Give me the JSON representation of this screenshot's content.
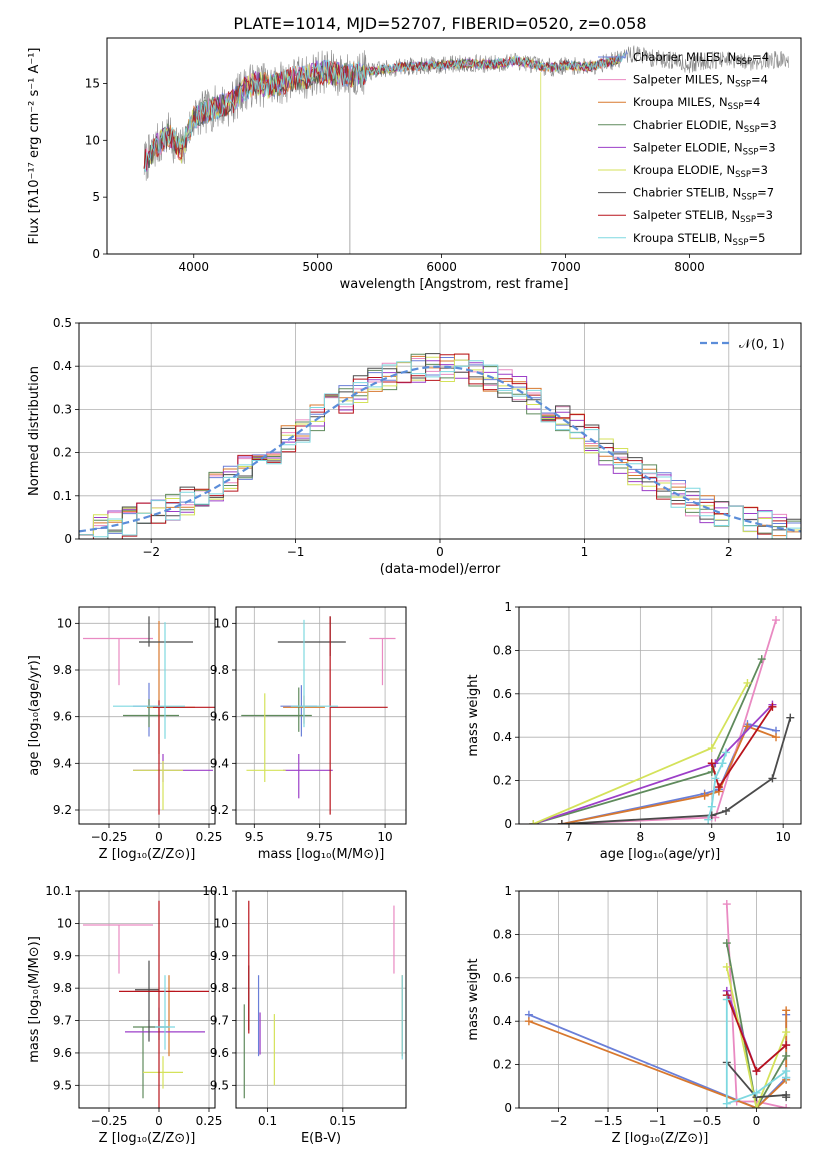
{
  "title": "PLATE=1014, MJD=52707, FIBERID=0520, z=0.058",
  "colors": [
    "#6a7fd8",
    "#e98ac2",
    "#d8782e",
    "#5f8a5c",
    "#9c3fc8",
    "#d4e25a",
    "#4b4b4b",
    "#b8141c",
    "#7ed8e0"
  ],
  "chart_data": [
    {
      "id": "spectrum",
      "type": "line",
      "xlabel": "wavelength [Angstrom, rest frame]",
      "ylabel": "Flux [fλ10⁻¹⁷ erg cm⁻² s⁻¹ A⁻¹]",
      "xlim": [
        3300,
        8900
      ],
      "ylim": [
        0,
        19
      ],
      "xticks": [
        4000,
        5000,
        6000,
        7000,
        8000
      ],
      "yticks": [
        0,
        5,
        10,
        15
      ],
      "legend_position": "upper-right",
      "data_color": "#888888",
      "data_x": [
        3600,
        3700,
        3800,
        3900,
        4000,
        4100,
        4200,
        4300,
        4400,
        4500,
        4600,
        4700,
        4800,
        4900,
        5000,
        5100,
        5200,
        5300,
        5400,
        5500,
        5600,
        5700,
        5800,
        5900,
        6000,
        6100,
        6200,
        6300,
        6400,
        6500,
        6600,
        6700,
        6800,
        6900,
        7000,
        7100,
        7200,
        7300,
        7400,
        7500,
        7600,
        7700,
        7800,
        7900,
        8000,
        8100,
        8200,
        8300,
        8400,
        8500,
        8600,
        8700,
        8800
      ],
      "data_y": [
        8,
        9.5,
        10.5,
        9,
        12,
        12.5,
        13,
        13.2,
        14.5,
        15,
        14.8,
        15,
        15.5,
        15.5,
        16,
        16,
        15.7,
        15.8,
        16,
        16.2,
        16.3,
        16.5,
        16.5,
        16.6,
        16.6,
        16.7,
        16.8,
        16.7,
        16.7,
        16.8,
        17,
        16.8,
        16.5,
        16.4,
        16.6,
        16.5,
        16.5,
        16.8,
        17,
        17.5,
        17.6,
        17.2,
        17.1,
        17.0,
        16.6,
        16.9,
        17.1,
        17.0,
        16.9,
        16.9,
        17.0,
        17.1,
        17.1
      ],
      "series": [
        {
          "name": "Chabrier MILES, N",
          "sub": "SSP",
          "n": "=4"
        },
        {
          "name": "Salpeter MILES, N",
          "sub": "SSP",
          "n": "=4"
        },
        {
          "name": "Kroupa MILES, N",
          "sub": "SSP",
          "n": "=4"
        },
        {
          "name": "Chabrier ELODIE, N",
          "sub": "SSP",
          "n": "=3"
        },
        {
          "name": "Salpeter ELODIE, N",
          "sub": "SSP",
          "n": "=3"
        },
        {
          "name": "Kroupa ELODIE, N",
          "sub": "SSP",
          "n": "=3"
        },
        {
          "name": "Chabrier STELIB, N",
          "sub": "SSP",
          "n": "=7"
        },
        {
          "name": "Salpeter STELIB, N",
          "sub": "SSP",
          "n": "=3"
        },
        {
          "name": "Kroupa STELIB, N",
          "sub": "SSP",
          "n": "=5"
        }
      ]
    },
    {
      "id": "residuals",
      "type": "step",
      "xlabel": "(data-model)/error",
      "ylabel": "Normed distribution",
      "xlim": [
        -2.5,
        2.5
      ],
      "ylim": [
        0,
        0.5
      ],
      "xticks": [
        -2,
        -1,
        0,
        1,
        2
      ],
      "yticks": [
        0,
        0.1,
        0.2,
        0.3,
        0.4,
        0.5
      ],
      "grid": true,
      "bin_width": 0.1,
      "bin_centers": [
        -2.45,
        -2.35,
        -2.25,
        -2.15,
        -2.05,
        -1.95,
        -1.85,
        -1.75,
        -1.65,
        -1.55,
        -1.45,
        -1.35,
        -1.25,
        -1.15,
        -1.05,
        -0.95,
        -0.85,
        -0.75,
        -0.65,
        -0.55,
        -0.45,
        -0.35,
        -0.25,
        -0.15,
        -0.05,
        0.05,
        0.15,
        0.25,
        0.35,
        0.45,
        0.55,
        0.65,
        0.75,
        0.85,
        0.95,
        1.05,
        1.15,
        1.25,
        1.35,
        1.45,
        1.55,
        1.65,
        1.75,
        1.85,
        1.95,
        2.05,
        2.15,
        2.25,
        2.35,
        2.45
      ],
      "gaussian_label": "𝒩(0, 1)",
      "gaussian_color": "#5b8dd9",
      "legend_position": "upper-right"
    },
    {
      "id": "age_vs_z",
      "type": "errorbar",
      "xlabel": "Z [log₁₀(Z/Z⊙)]",
      "ylabel": "age  [log₁₀(age/yr)]",
      "xlim": [
        -0.4,
        0.28
      ],
      "ylim": [
        9.14,
        10.07
      ],
      "xticks": [
        -0.25,
        0.0,
        0.25
      ],
      "yticks": [
        9.2,
        9.4,
        9.6,
        9.8,
        10.0
      ],
      "grid": true,
      "points": [
        {
          "x": -0.05,
          "y": 9.645,
          "xerr": [
            0.08,
            0.05
          ],
          "yerr": [
            0.13,
            0.1
          ]
        },
        {
          "x": -0.2,
          "y": 9.935,
          "xerr": [
            0.18,
            0.17
          ],
          "yerr": [
            0.2,
            0.0
          ]
        },
        {
          "x": 0.0,
          "y": 9.64,
          "xerr": [
            0.06,
            0.18
          ],
          "yerr": [
            0.2,
            0.37
          ]
        },
        {
          "x": -0.05,
          "y": 9.605,
          "xerr": [
            0.13,
            0.15
          ],
          "yerr": [
            0.05,
            0.07
          ]
        },
        {
          "x": 0.02,
          "y": 9.37,
          "xerr": [
            0.15,
            0.25
          ],
          "yerr": [
            0.05,
            0.07
          ]
        },
        {
          "x": 0.02,
          "y": 9.37,
          "xerr": [
            0.15,
            0.1
          ],
          "yerr": [
            0.17,
            0.04
          ]
        },
        {
          "x": -0.05,
          "y": 9.92,
          "xerr": [
            0.05,
            0.22
          ],
          "yerr": [
            0.02,
            0.11
          ]
        },
        {
          "x": 0.0,
          "y": 9.64,
          "xerr": [
            0.03,
            0.33
          ],
          "yerr": [
            0.46,
            0.03
          ]
        },
        {
          "x": 0.03,
          "y": 9.645,
          "xerr": [
            0.26,
            0.1
          ],
          "yerr": [
            0.14,
            0.36
          ]
        }
      ]
    },
    {
      "id": "age_vs_mass",
      "type": "errorbar",
      "xlabel": "mass [log₁₀(M/M⊙)]",
      "ylabel": "",
      "xlim": [
        9.43,
        10.08
      ],
      "ylim": [
        9.14,
        10.07
      ],
      "xticks": [
        9.5,
        9.75,
        10.0
      ],
      "yticks": [
        9.2,
        9.4,
        9.6,
        9.8,
        10.0
      ],
      "grid": true,
      "points": [
        {
          "x": 9.68,
          "y": 9.645,
          "xerr": [
            0.08,
            0.06
          ],
          "yerr": [
            0.13,
            0.09
          ]
        },
        {
          "x": 9.99,
          "y": 9.935,
          "xerr": [
            0.05,
            0.05
          ],
          "yerr": [
            0.2,
            0.0
          ]
        },
        {
          "x": 9.69,
          "y": 9.64,
          "xerr": [
            0.08,
            0.08
          ],
          "yerr": [
            0.07,
            0.05
          ]
        },
        {
          "x": 9.67,
          "y": 9.605,
          "xerr": [
            0.22,
            0.05
          ],
          "yerr": [
            0.07,
            0.12
          ]
        },
        {
          "x": 9.67,
          "y": 9.37,
          "xerr": [
            0.06,
            0.13
          ],
          "yerr": [
            0.12,
            0.07
          ]
        },
        {
          "x": 9.54,
          "y": 9.37,
          "xerr": [
            0.07,
            0.08
          ],
          "yerr": [
            0.05,
            0.33
          ]
        },
        {
          "x": 9.79,
          "y": 9.92,
          "xerr": [
            0.2,
            0.06
          ],
          "yerr": [
            0.06,
            0.11
          ]
        },
        {
          "x": 9.79,
          "y": 9.64,
          "xerr": [
            0.0,
            0.22
          ],
          "yerr": [
            0.46,
            0.39
          ]
        },
        {
          "x": 9.69,
          "y": 9.645,
          "xerr": [
            0.05,
            0.13
          ],
          "yerr": [
            0.09,
            0.37
          ]
        }
      ]
    },
    {
      "id": "weight_vs_age",
      "type": "line",
      "xlabel": "age  [log₁₀(age/yr)]",
      "ylabel": "mass weight",
      "xlim": [
        6.3,
        10.25
      ],
      "ylim": [
        0,
        1.0
      ],
      "xticks": [
        7,
        8,
        9,
        10
      ],
      "yticks": [
        0.0,
        0.2,
        0.4,
        0.6,
        0.8,
        1.0
      ],
      "grid": true,
      "series": [
        {
          "x": [
            6.9,
            8.9,
            9.1,
            9.5,
            9.9
          ],
          "y": [
            0.0,
            0.14,
            0.16,
            0.46,
            0.43
          ]
        },
        {
          "x": [
            6.9,
            9.0,
            9.05,
            9.9
          ],
          "y": [
            0.0,
            0.03,
            0.03,
            0.94
          ]
        },
        {
          "x": [
            6.9,
            8.9,
            9.1,
            9.5,
            9.9
          ],
          "y": [
            0.0,
            0.13,
            0.15,
            0.45,
            0.4
          ]
        },
        {
          "x": [
            6.5,
            9.0,
            9.7
          ],
          "y": [
            0.0,
            0.24,
            0.76
          ]
        },
        {
          "x": [
            6.5,
            9.05,
            9.85
          ],
          "y": [
            0.0,
            0.28,
            0.55
          ]
        },
        {
          "x": [
            6.5,
            9.0,
            9.5
          ],
          "y": [
            0.0,
            0.35,
            0.65
          ]
        },
        {
          "x": [
            6.9,
            9.0,
            9.2,
            9.85,
            10.1
          ],
          "y": [
            0.0,
            0.04,
            0.06,
            0.21,
            0.49
          ]
        },
        {
          "x": [
            9.0,
            9.1,
            9.85
          ],
          "y": [
            0.28,
            0.17,
            0.54
          ]
        },
        {
          "x": [
            8.95,
            9.0,
            9.05,
            9.15,
            9.2
          ],
          "y": [
            0.02,
            0.08,
            0.21,
            0.28,
            0.33
          ]
        }
      ]
    },
    {
      "id": "mass_vs_z",
      "type": "errorbar",
      "xlabel": "Z [log₁₀(Z/Z⊙)]",
      "ylabel": "mass [log₁₀(M/M⊙)]",
      "xlim": [
        -0.4,
        0.28
      ],
      "ylim": [
        9.43,
        10.1
      ],
      "xticks": [
        -0.25,
        0.0,
        0.25
      ],
      "yticks": [
        9.5,
        9.6,
        9.7,
        9.8,
        9.9,
        10.0,
        10.1
      ],
      "grid": true,
      "points": [
        {
          "x": 0.0,
          "y": 9.68,
          "xerr": [
            0.05,
            0.05
          ],
          "yerr": [
            0.04,
            0.06
          ]
        },
        {
          "x": -0.2,
          "y": 9.995,
          "xerr": [
            0.18,
            0.17
          ],
          "yerr": [
            0.15,
            0.0
          ]
        },
        {
          "x": 0.05,
          "y": 9.79,
          "xerr": [
            0.0,
            0.03
          ],
          "yerr": [
            0.2,
            0.05
          ]
        },
        {
          "x": -0.08,
          "y": 9.68,
          "xerr": [
            0.05,
            0.13
          ],
          "yerr": [
            0.22,
            0.0
          ]
        },
        {
          "x": -0.02,
          "y": 9.665,
          "xerr": [
            0.15,
            0.25
          ],
          "yerr": [
            0.0,
            0.0
          ]
        },
        {
          "x": 0.02,
          "y": 9.54,
          "xerr": [
            0.1,
            0.1
          ],
          "yerr": [
            0.05,
            0.05
          ]
        },
        {
          "x": -0.05,
          "y": 9.795,
          "xerr": [
            0.07,
            0.05
          ],
          "yerr": [
            0.16,
            0.09
          ]
        },
        {
          "x": 0.0,
          "y": 9.79,
          "xerr": [
            0.2,
            0.25
          ],
          "yerr": [
            0.37,
            0.28
          ]
        },
        {
          "x": 0.03,
          "y": 9.68,
          "xerr": [
            0.05,
            0.05
          ],
          "yerr": [
            0.07,
            0.16
          ]
        }
      ]
    },
    {
      "id": "mass_vs_ebv",
      "type": "errorbar",
      "xlabel": "E(B-V)",
      "ylabel": "",
      "xlim": [
        0.079,
        0.192
      ],
      "ylim": [
        9.43,
        10.1
      ],
      "xticks": [
        0.1,
        0.15
      ],
      "yticks": [
        9.5,
        9.6,
        9.7,
        9.8,
        9.9,
        10.0,
        10.1
      ],
      "grid": true,
      "points": [
        {
          "x": 0.094,
          "y": 9.68,
          "xerr": [
            0.0,
            0.0
          ],
          "yerr": [
            0.09,
            0.16
          ]
        },
        {
          "x": 0.184,
          "y": 9.995,
          "xerr": [
            0.0,
            0.0
          ],
          "yerr": [
            0.15,
            0.06
          ]
        },
        {
          "x": 0.1895,
          "y": 9.79,
          "xerr": [
            0.0,
            0.0
          ],
          "yerr": [
            0.2,
            0.05
          ]
        },
        {
          "x": 0.0845,
          "y": 9.68,
          "xerr": [
            0.0,
            0.0
          ],
          "yerr": [
            0.22,
            0.07
          ]
        },
        {
          "x": 0.095,
          "y": 9.665,
          "xerr": [
            0.0,
            0.0
          ],
          "yerr": [
            0.07,
            0.06
          ]
        },
        {
          "x": 0.1045,
          "y": 9.6,
          "xerr": [
            0.0,
            0.0
          ],
          "yerr": [
            0.1,
            0.12
          ]
        },
        {
          "x": 0.0875,
          "y": 9.77,
          "xerr": [
            0.0,
            0.0
          ],
          "yerr": [
            0.1,
            0.1
          ]
        },
        {
          "x": 0.0875,
          "y": 9.86,
          "xerr": [
            0.0,
            0.0
          ],
          "yerr": [
            0.2,
            0.21
          ]
        },
        {
          "x": 0.1895,
          "y": 9.7,
          "xerr": [
            0.0,
            0.0
          ],
          "yerr": [
            0.12,
            0.14
          ]
        }
      ]
    },
    {
      "id": "weight_vs_z",
      "type": "line",
      "xlabel": "Z [log₁₀(Z/Z⊙)]",
      "ylabel": "mass weight",
      "xlim": [
        -2.4,
        0.45
      ],
      "ylim": [
        0,
        1.0
      ],
      "xticks": [
        -2.0,
        -1.5,
        -1.0,
        -0.5,
        0.0
      ],
      "yticks": [
        0.0,
        0.2,
        0.4,
        0.6,
        0.8,
        1.0
      ],
      "grid": true,
      "series": [
        {
          "x": [
            -2.3,
            0.0,
            0.3,
            0.3
          ],
          "y": [
            0.43,
            0.0,
            0.14,
            0.43
          ]
        },
        {
          "x": [
            -0.3,
            -0.2,
            0.0,
            0.3
          ],
          "y": [
            0.94,
            0.03,
            0.03,
            0.0
          ]
        },
        {
          "x": [
            -2.3,
            0.0,
            0.3,
            0.3
          ],
          "y": [
            0.4,
            0.0,
            0.13,
            0.45
          ]
        },
        {
          "x": [
            -0.3,
            0.0,
            0.3
          ],
          "y": [
            0.76,
            0.0,
            0.24
          ]
        },
        {
          "x": [
            -0.3,
            0.0,
            0.3
          ],
          "y": [
            0.54,
            0.17,
            0.29
          ]
        },
        {
          "x": [
            -0.3,
            0.0,
            0.3
          ],
          "y": [
            0.65,
            0.0,
            0.35
          ]
        },
        {
          "x": [
            -0.3,
            0.0,
            0.3,
            0.3
          ],
          "y": [
            0.21,
            0.05,
            0.06,
            0.05
          ]
        },
        {
          "x": [
            -0.3,
            0.0,
            0.3
          ],
          "y": [
            0.52,
            0.17,
            0.29
          ]
        },
        {
          "x": [
            -0.3,
            -0.3,
            0.0,
            0.3,
            0.3
          ],
          "y": [
            0.5,
            0.02,
            0.07,
            0.17,
            0.14
          ]
        }
      ]
    }
  ]
}
